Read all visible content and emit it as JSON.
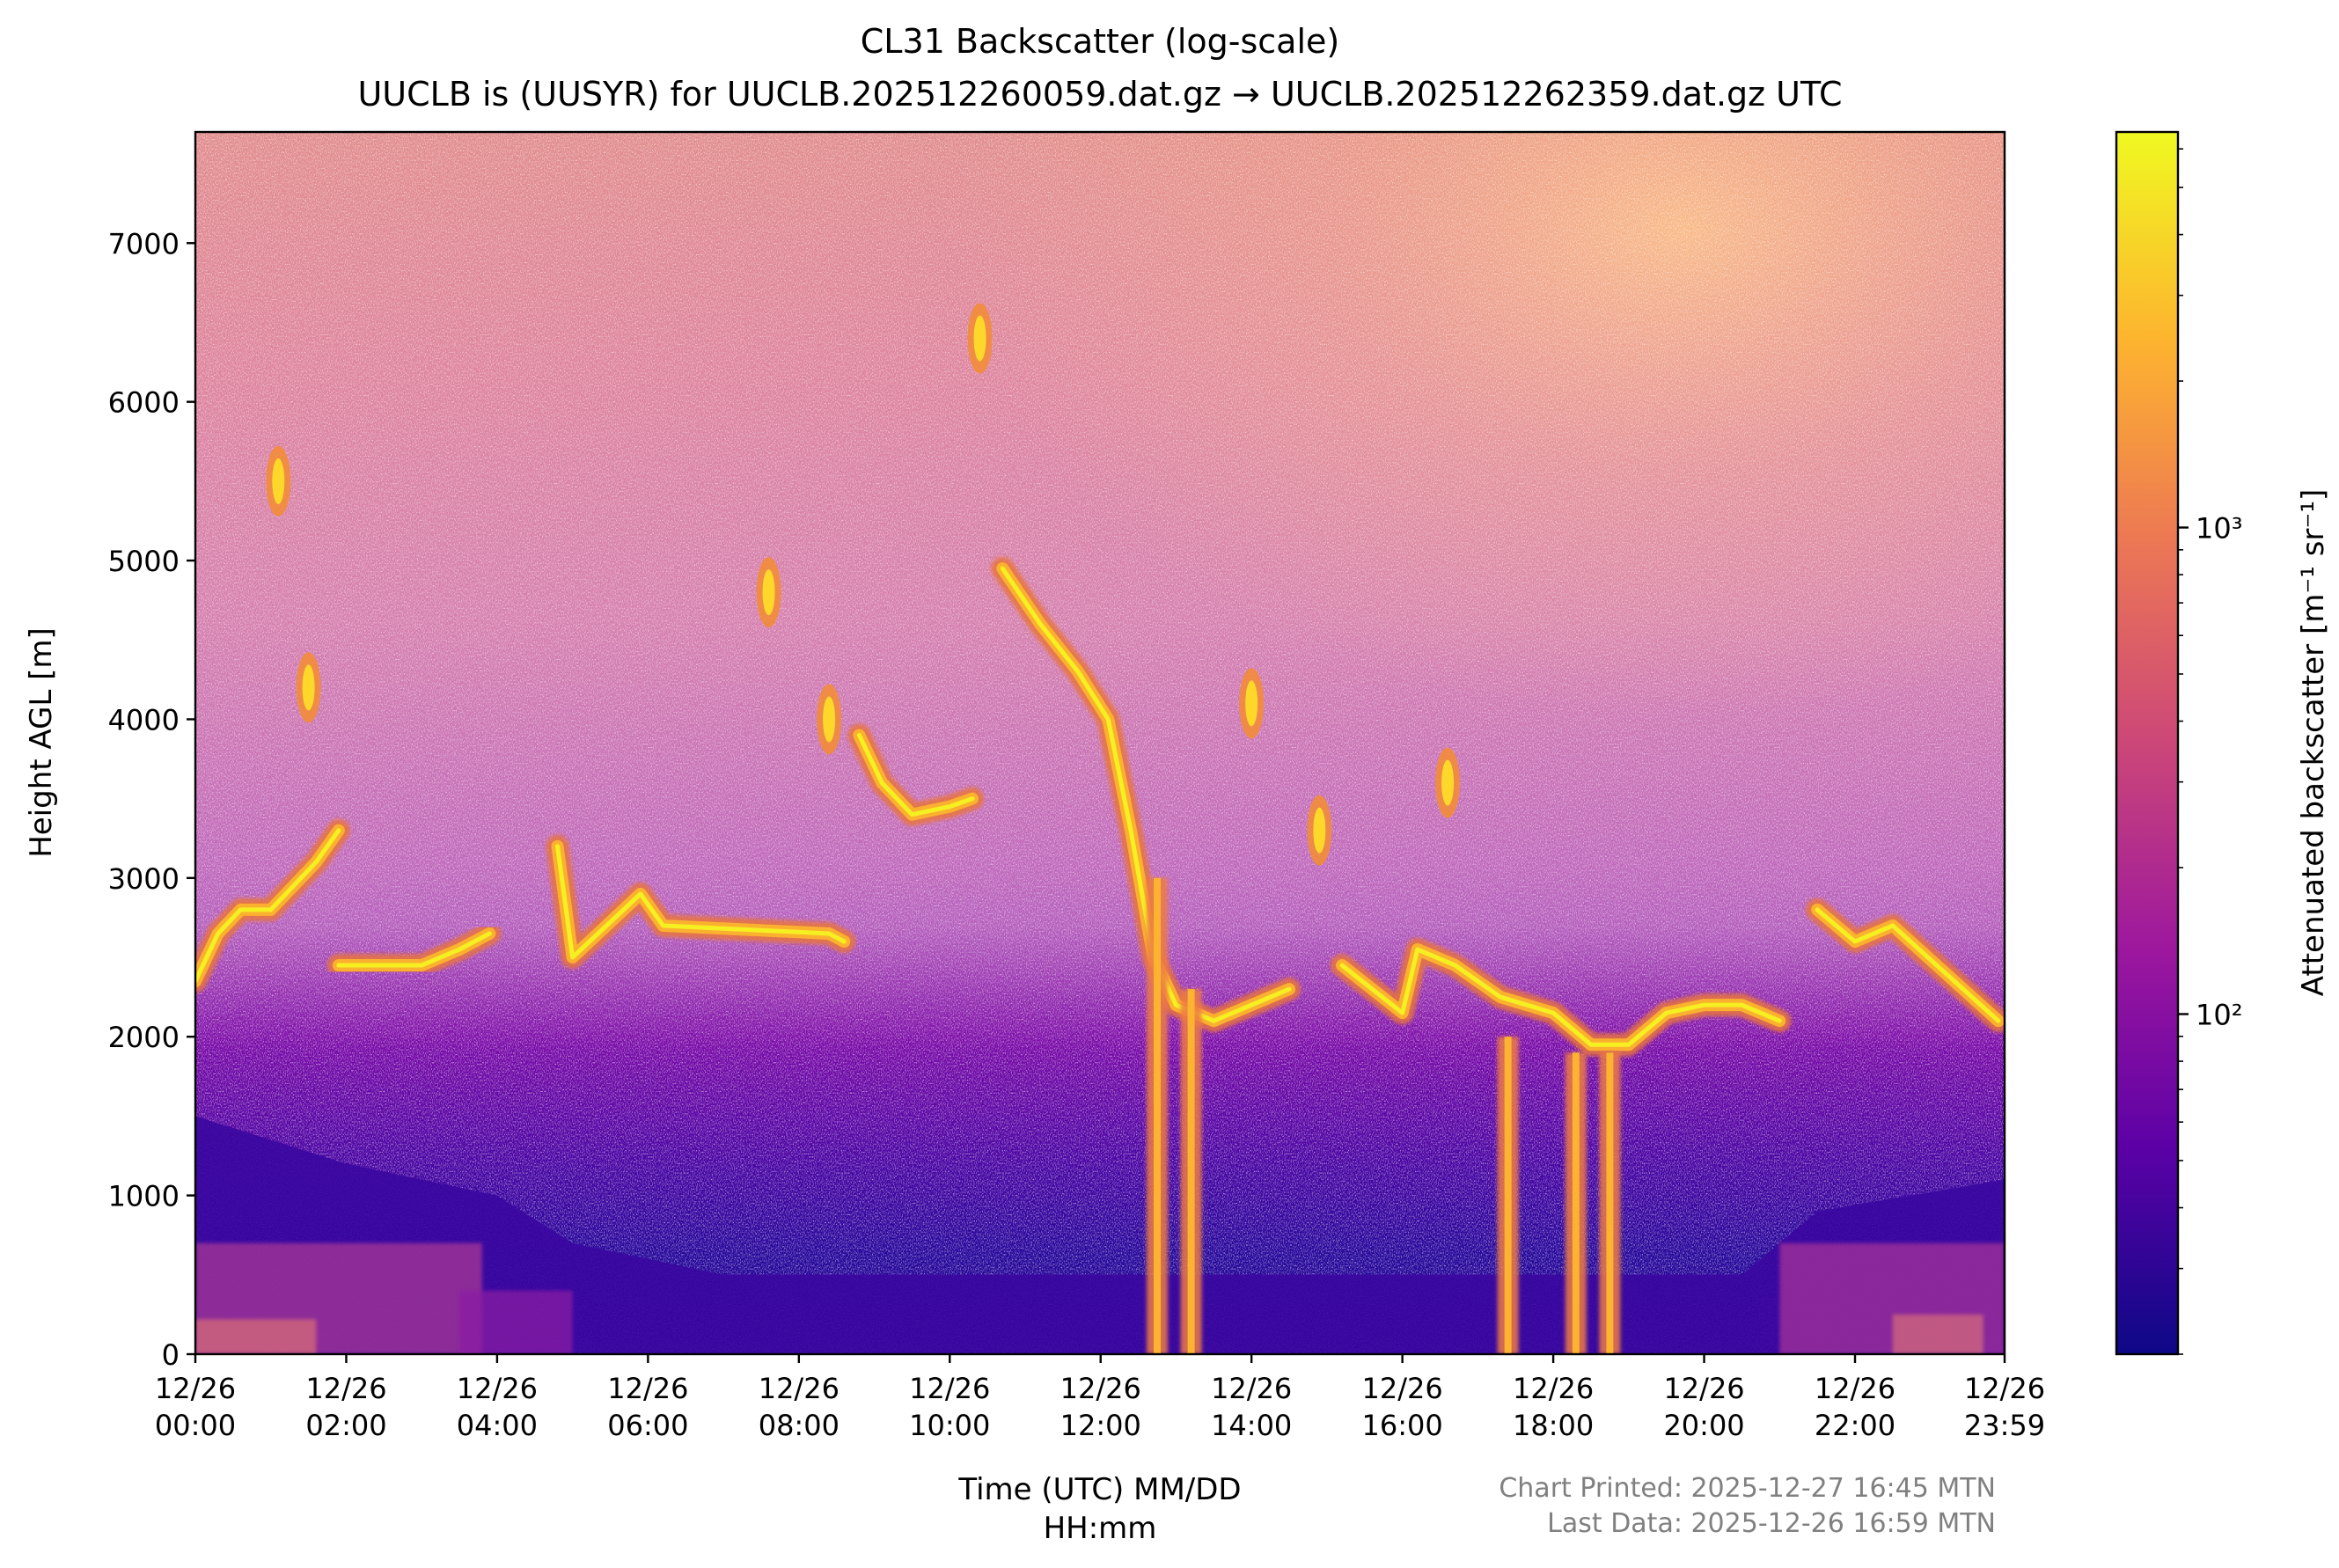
{
  "chart_data": {
    "type": "heatmap",
    "title": "CL31 Backscatter (log-scale)",
    "subtitle": "UUCLB is (UUSYR) for UUCLB.202512260059.dat.gz → UUCLB.202512262359.dat.gz UTC",
    "xlabel_line1": "Time (UTC) MM/DD",
    "xlabel_line2": "HH:mm",
    "ylabel": "Height AGL [m]",
    "colorbar_label": "Attenuated backscatter [m⁻¹ sr⁻¹]",
    "colorbar_scale": "log",
    "colorbar_range": [
      20,
      6500
    ],
    "colorbar_ticks": [
      {
        "value": 100,
        "label": "10²"
      },
      {
        "value": 1000,
        "label": "10³"
      }
    ],
    "colormap": "plasma",
    "colormap_stops": [
      "#0d0887",
      "#5c01a6",
      "#9c179e",
      "#cc4778",
      "#ed7953",
      "#fdb42f",
      "#f0f921"
    ],
    "xlim_hours": [
      0,
      23.983
    ],
    "ylim": [
      0,
      7700
    ],
    "x_ticks": [
      {
        "hour": 0,
        "date": "12/26",
        "time": "00:00"
      },
      {
        "hour": 2,
        "date": "12/26",
        "time": "02:00"
      },
      {
        "hour": 4,
        "date": "12/26",
        "time": "04:00"
      },
      {
        "hour": 6,
        "date": "12/26",
        "time": "06:00"
      },
      {
        "hour": 8,
        "date": "12/26",
        "time": "08:00"
      },
      {
        "hour": 10,
        "date": "12/26",
        "time": "10:00"
      },
      {
        "hour": 12,
        "date": "12/26",
        "time": "12:00"
      },
      {
        "hour": 14,
        "date": "12/26",
        "time": "14:00"
      },
      {
        "hour": 16,
        "date": "12/26",
        "time": "16:00"
      },
      {
        "hour": 18,
        "date": "12/26",
        "time": "18:00"
      },
      {
        "hour": 20,
        "date": "12/26",
        "time": "20:00"
      },
      {
        "hour": 22,
        "date": "12/26",
        "time": "22:00"
      },
      {
        "hour": 23.983,
        "date": "12/26",
        "time": "23:59"
      }
    ],
    "y_ticks": [
      0,
      1000,
      2000,
      3000,
      4000,
      5000,
      6000,
      7000
    ],
    "cloud_layers": [
      {
        "name": "low-cloud-early",
        "points": [
          [
            0.0,
            2350
          ],
          [
            0.3,
            2650
          ],
          [
            0.6,
            2800
          ],
          [
            1.0,
            2800
          ],
          [
            1.6,
            3100
          ],
          [
            1.9,
            3300
          ]
        ]
      },
      {
        "name": "stratocumulus-2to4",
        "points": [
          [
            1.9,
            2450
          ],
          [
            2.5,
            2450
          ],
          [
            3.0,
            2450
          ],
          [
            3.5,
            2550
          ],
          [
            3.9,
            2650
          ]
        ]
      },
      {
        "name": "elevated-blobs",
        "points": [
          [
            4.8,
            3200
          ],
          [
            5.0,
            2500
          ],
          [
            5.9,
            2900
          ],
          [
            6.2,
            2700
          ],
          [
            8.4,
            2650
          ],
          [
            8.6,
            2600
          ]
        ]
      },
      {
        "name": "mid-level-cloud-9to10",
        "points": [
          [
            8.8,
            3900
          ],
          [
            9.1,
            3600
          ],
          [
            9.5,
            3400
          ],
          [
            10.0,
            3450
          ],
          [
            10.3,
            3500
          ]
        ]
      },
      {
        "name": "descending-layer",
        "points": [
          [
            10.7,
            4950
          ],
          [
            11.2,
            4600
          ],
          [
            11.7,
            4300
          ],
          [
            12.1,
            4000
          ],
          [
            12.4,
            3300
          ],
          [
            12.7,
            2500
          ],
          [
            13.0,
            2200
          ],
          [
            13.5,
            2100
          ],
          [
            14.0,
            2200
          ],
          [
            14.5,
            2300
          ]
        ]
      },
      {
        "name": "layer-15to21",
        "points": [
          [
            15.2,
            2450
          ],
          [
            15.6,
            2300
          ],
          [
            16.0,
            2150
          ],
          [
            16.2,
            2550
          ],
          [
            16.7,
            2450
          ],
          [
            17.3,
            2250
          ],
          [
            18.0,
            2150
          ],
          [
            18.5,
            1950
          ],
          [
            19.0,
            1950
          ],
          [
            19.5,
            2150
          ],
          [
            20.0,
            2200
          ],
          [
            20.5,
            2200
          ],
          [
            21.0,
            2100
          ]
        ]
      },
      {
        "name": "late-layer-22to24",
        "points": [
          [
            21.5,
            2800
          ],
          [
            22.0,
            2600
          ],
          [
            22.5,
            2700
          ],
          [
            23.2,
            2400
          ],
          [
            23.9,
            2100
          ]
        ]
      },
      {
        "name": "high-cloud-elements",
        "points": [
          [
            1.1,
            5500
          ],
          [
            1.5,
            4200
          ],
          [
            7.6,
            4800
          ],
          [
            8.4,
            4000
          ],
          [
            10.4,
            6400
          ],
          [
            14.0,
            4100
          ],
          [
            14.9,
            3300
          ],
          [
            16.6,
            3600
          ]
        ]
      }
    ],
    "precip_fallstreaks": [
      {
        "hour": 12.75,
        "top": 3000
      },
      {
        "hour": 13.2,
        "top": 2300
      },
      {
        "hour": 17.4,
        "top": 2000
      },
      {
        "hour": 18.3,
        "top": 1900
      },
      {
        "hour": 18.75,
        "top": 1900
      }
    ]
  },
  "footer": {
    "printed": "Chart Printed: 2025-12-27 16:45 MTN",
    "last_data": "Last Data: 2025-12-26 16:59 MTN"
  }
}
